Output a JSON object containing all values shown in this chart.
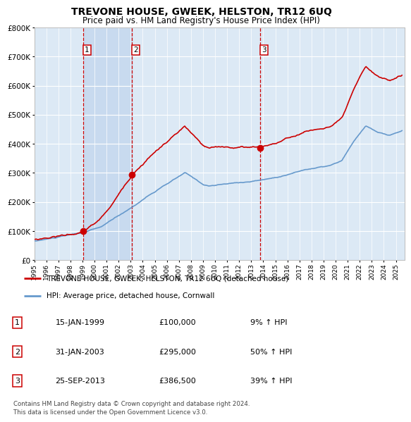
{
  "title": "TREVONE HOUSE, GWEEK, HELSTON, TR12 6UQ",
  "subtitle": "Price paid vs. HM Land Registry's House Price Index (HPI)",
  "sale_dates_decimal": [
    1999.04,
    2003.08,
    2013.73
  ],
  "sale_prices": [
    100000,
    295000,
    386500
  ],
  "legend_house": "TREVONE HOUSE, GWEEK, HELSTON, TR12 6UQ (detached house)",
  "legend_hpi": "HPI: Average price, detached house, Cornwall",
  "table_rows": [
    {
      "num": "1",
      "date": "15-JAN-1999",
      "price": "£100,000",
      "change": "9% ↑ HPI"
    },
    {
      "num": "2",
      "date": "31-JAN-2003",
      "price": "£295,000",
      "change": "50% ↑ HPI"
    },
    {
      "num": "3",
      "date": "25-SEP-2013",
      "price": "£386,500",
      "change": "39% ↑ HPI"
    }
  ],
  "footer": "Contains HM Land Registry data © Crown copyright and database right 2024.\nThis data is licensed under the Open Government Licence v3.0.",
  "red_color": "#cc0000",
  "blue_color": "#6699cc",
  "bg_color": "#dce9f5",
  "shade_color": "#c5d8ee",
  "xmin": 1995.0,
  "xmax": 2025.7,
  "ylim_max": 800000
}
